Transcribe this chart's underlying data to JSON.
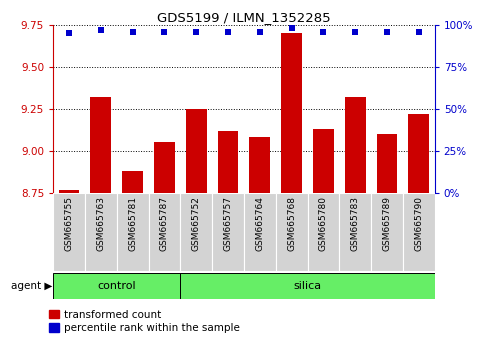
{
  "title": "GDS5199 / ILMN_1352285",
  "samples": [
    "GSM665755",
    "GSM665763",
    "GSM665781",
    "GSM665787",
    "GSM665752",
    "GSM665757",
    "GSM665764",
    "GSM665768",
    "GSM665780",
    "GSM665783",
    "GSM665789",
    "GSM665790"
  ],
  "transformed_count": [
    8.77,
    9.32,
    8.88,
    9.05,
    9.25,
    9.12,
    9.08,
    9.7,
    9.13,
    9.32,
    9.1,
    9.22
  ],
  "percentile_rank": [
    95,
    97,
    96,
    96,
    96,
    96,
    96,
    98,
    96,
    96,
    96,
    96
  ],
  "ylim_left": [
    8.75,
    9.75
  ],
  "yticks_left": [
    8.75,
    9.0,
    9.25,
    9.5,
    9.75
  ],
  "yticks_right": [
    0,
    25,
    50,
    75,
    100
  ],
  "ylim_right": [
    0,
    100
  ],
  "bar_color": "#cc0000",
  "dot_color": "#0000cc",
  "control_indices": [
    0,
    1,
    2,
    3
  ],
  "silica_indices": [
    4,
    5,
    6,
    7,
    8,
    9,
    10,
    11
  ],
  "control_label": "control",
  "silica_label": "silica",
  "agent_label": "agent",
  "legend_bar_label": "transformed count",
  "legend_dot_label": "percentile rank within the sample",
  "tick_color_left": "#cc0000",
  "tick_color_right": "#0000cc",
  "bg_plot": "#ffffff",
  "bg_sample": "#d3d3d3",
  "bg_group": "#66ee66"
}
